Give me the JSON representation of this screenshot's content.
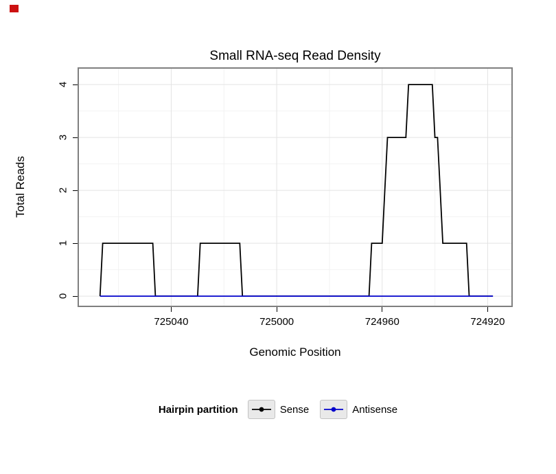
{
  "title": "Small RNA-seq Read Density",
  "x_axis": {
    "label": "Genomic Position",
    "ticks": [
      "725040",
      "725000",
      "724960",
      "724920"
    ],
    "tick_values": [
      725040,
      725000,
      724960,
      724920
    ],
    "minor_values": [
      725060,
      725020,
      724980,
      724940
    ]
  },
  "y_axis": {
    "label": "Total Reads",
    "ticks": [
      "0",
      "1",
      "2",
      "3",
      "4"
    ],
    "tick_values": [
      0,
      1,
      2,
      3,
      4
    ],
    "minor_values": [
      0.5,
      1.5,
      2.5,
      3.5
    ]
  },
  "legend": {
    "title": "Hairpin partition",
    "entries": [
      {
        "label": "Sense",
        "color": "#000000"
      },
      {
        "label": "Antisense",
        "color": "#0000CC"
      }
    ]
  },
  "colors": {
    "grid_major": "#e3e3e3",
    "grid_minor": "#f2f2f2",
    "panel_border": "#7f7f7f",
    "key_bg": "#e9e9e9",
    "red_marker": "#cc1111"
  },
  "chart_data": {
    "type": "line",
    "title": "Small RNA-seq Read Density",
    "xlabel": "Genomic Position",
    "ylabel": "Total Reads",
    "x_axis_reversed": true,
    "xlim": [
      725075,
      724911
    ],
    "ylim": [
      -0.18,
      4.3
    ],
    "grid": true,
    "legend_position": "bottom",
    "legend_title": "Hairpin partition",
    "series": [
      {
        "name": "Sense",
        "color": "#000000",
        "points": [
          [
            725067,
            0
          ],
          [
            725066,
            1
          ],
          [
            725047,
            1
          ],
          [
            725046,
            0
          ],
          [
            725030,
            0
          ],
          [
            725029,
            1
          ],
          [
            725014,
            1
          ],
          [
            725013,
            0
          ],
          [
            724965,
            0
          ],
          [
            724964,
            1
          ],
          [
            724960,
            1
          ],
          [
            724959,
            2
          ],
          [
            724958,
            3
          ],
          [
            724951,
            3
          ],
          [
            724950,
            4
          ],
          [
            724941,
            4
          ],
          [
            724940,
            3
          ],
          [
            724939,
            3
          ],
          [
            724938,
            2
          ],
          [
            724937,
            1
          ],
          [
            724928,
            1
          ],
          [
            724927,
            0
          ],
          [
            724918,
            0
          ]
        ]
      },
      {
        "name": "Antisense",
        "color": "#0000CC",
        "points": [
          [
            725067,
            0
          ],
          [
            724918,
            0
          ]
        ]
      }
    ]
  }
}
